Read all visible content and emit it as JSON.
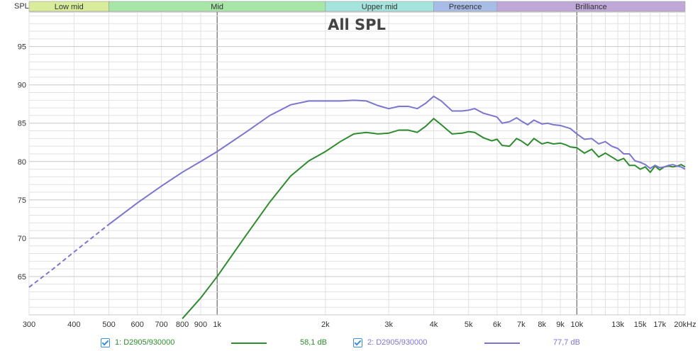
{
  "chart_data": {
    "type": "line",
    "title": "All SPL",
    "ylabel": "SPL",
    "x_scale": "log",
    "xlim": [
      300,
      20000
    ],
    "ylim": [
      60,
      99.5
    ],
    "grid": true,
    "x_ticks": [
      {
        "value": 300,
        "label": "300"
      },
      {
        "value": 400,
        "label": "400"
      },
      {
        "value": 500,
        "label": "500"
      },
      {
        "value": 600,
        "label": "600"
      },
      {
        "value": 700,
        "label": "700"
      },
      {
        "value": 800,
        "label": "800"
      },
      {
        "value": 900,
        "label": "900"
      },
      {
        "value": 1000,
        "label": "1k"
      },
      {
        "value": 2000,
        "label": "2k"
      },
      {
        "value": 3000,
        "label": "3k"
      },
      {
        "value": 4000,
        "label": "4k"
      },
      {
        "value": 5000,
        "label": "5k"
      },
      {
        "value": 6000,
        "label": "6k"
      },
      {
        "value": 7000,
        "label": "7k"
      },
      {
        "value": 8000,
        "label": "8k"
      },
      {
        "value": 9000,
        "label": "9k"
      },
      {
        "value": 10000,
        "label": "10k"
      },
      {
        "value": 13000,
        "label": "13k"
      },
      {
        "value": 15000,
        "label": "15k"
      },
      {
        "value": 17000,
        "label": "17k"
      },
      {
        "value": 20000,
        "label": "20kHz"
      }
    ],
    "y_ticks": [
      {
        "value": 65,
        "label": "65"
      },
      {
        "value": 70,
        "label": "70"
      },
      {
        "value": 75,
        "label": "75"
      },
      {
        "value": 80,
        "label": "80"
      },
      {
        "value": 85,
        "label": "85"
      },
      {
        "value": 90,
        "label": "90"
      },
      {
        "value": 95,
        "label": "95"
      }
    ],
    "bands": [
      {
        "label": "Low mid",
        "from": 300,
        "to": 500,
        "color": "#d8ec9c"
      },
      {
        "label": "Mid",
        "from": 500,
        "to": 2000,
        "color": "#a8e6a8"
      },
      {
        "label": "Upper mid",
        "from": 2000,
        "to": 4000,
        "color": "#a4e4dc"
      },
      {
        "label": "Presence",
        "from": 4000,
        "to": 6000,
        "color": "#a8bce8"
      },
      {
        "label": "Brilliance",
        "from": 6000,
        "to": 20000,
        "color": "#bfa8d8"
      }
    ],
    "series": [
      {
        "name": "1: D2905/930000",
        "value_label": "58,1 dB",
        "color": "#2e8b2e",
        "dashed_below": null,
        "x": [
          800,
          900,
          1000,
          1200,
          1400,
          1600,
          1800,
          2000,
          2200,
          2400,
          2600,
          2800,
          3000,
          3200,
          3400,
          3600,
          3800,
          4000,
          4200,
          4500,
          4800,
          5000,
          5200,
          5500,
          5800,
          6000,
          6200,
          6500,
          6800,
          7000,
          7300,
          7600,
          8000,
          8300,
          8600,
          9000,
          9300,
          9600,
          10000,
          10500,
          11000,
          11500,
          12000,
          12500,
          13000,
          13500,
          14000,
          14500,
          15000,
          15500,
          16000,
          16500,
          17000,
          17500,
          18000,
          18500,
          19000,
          19500,
          20000
        ],
        "y": [
          59.5,
          62.2,
          65,
          70.3,
          74.7,
          78.1,
          80.1,
          81.3,
          82.6,
          83.6,
          83.8,
          83.6,
          83.7,
          84.1,
          84.1,
          83.8,
          84.6,
          85.6,
          84.8,
          83.6,
          83.7,
          83.9,
          83.8,
          83.1,
          82.7,
          82.9,
          82.1,
          82.0,
          83.0,
          82.7,
          82.1,
          83.0,
          82.3,
          82.5,
          82.3,
          82.4,
          82.2,
          81.9,
          81.8,
          81.1,
          81.6,
          80.6,
          81.1,
          80.6,
          80.1,
          80.4,
          79.5,
          79.5,
          79.0,
          79.3,
          78.6,
          79.4,
          78.9,
          79.3,
          79.4,
          79.3,
          79.4,
          79.6,
          79.3
        ]
      },
      {
        "name": "2: D2905/930000",
        "value_label": "77,7 dB",
        "color": "#7b76cf",
        "dashed_below": 500,
        "x": [
          300,
          350,
          400,
          450,
          500,
          600,
          700,
          800,
          900,
          1000,
          1200,
          1400,
          1600,
          1800,
          2000,
          2200,
          2400,
          2600,
          2800,
          3000,
          3200,
          3400,
          3600,
          3800,
          4000,
          4200,
          4500,
          4800,
          5000,
          5200,
          5500,
          5800,
          6000,
          6200,
          6500,
          6800,
          7000,
          7300,
          7600,
          8000,
          8300,
          8600,
          9000,
          9300,
          9600,
          10000,
          10500,
          11000,
          11500,
          12000,
          12500,
          13000,
          13500,
          14000,
          14500,
          15000,
          15500,
          16000,
          16500,
          17000,
          17500,
          18000,
          18500,
          19000,
          19500,
          20000
        ],
        "y": [
          63.6,
          66.0,
          68.2,
          70.1,
          71.8,
          74.6,
          76.8,
          78.6,
          80.0,
          81.3,
          83.8,
          86.0,
          87.4,
          87.9,
          87.9,
          87.9,
          88.0,
          87.9,
          87.3,
          86.9,
          87.2,
          87.2,
          86.9,
          87.6,
          88.5,
          87.9,
          86.6,
          86.6,
          86.7,
          86.9,
          86.3,
          86.0,
          85.8,
          85.0,
          85.2,
          85.7,
          85.3,
          84.8,
          85.4,
          84.9,
          85.0,
          84.8,
          84.7,
          84.5,
          84.3,
          83.6,
          82.9,
          83.0,
          82.3,
          82.6,
          82.0,
          81.7,
          81.0,
          81.0,
          80.1,
          79.9,
          79.6,
          79.1,
          79.5,
          79.2,
          79.3,
          79.5,
          79.6,
          79.4,
          79.3,
          79.0
        ]
      }
    ]
  },
  "legend": {
    "entries": [
      {
        "label": "1: D2905/930000",
        "value": "58,1 dB",
        "color": "#2e8b2e",
        "checked": true
      },
      {
        "label": "2: D2905/930000",
        "value": "77,7 dB",
        "color": "#7b76cf",
        "checked": true
      }
    ]
  },
  "colors": {
    "grid_minor": "#e2e2e2",
    "grid_major": "#c8c8c8",
    "decade_line": "#555555",
    "axis": "#bdbdbd",
    "checkbox": "#3b8ede"
  }
}
